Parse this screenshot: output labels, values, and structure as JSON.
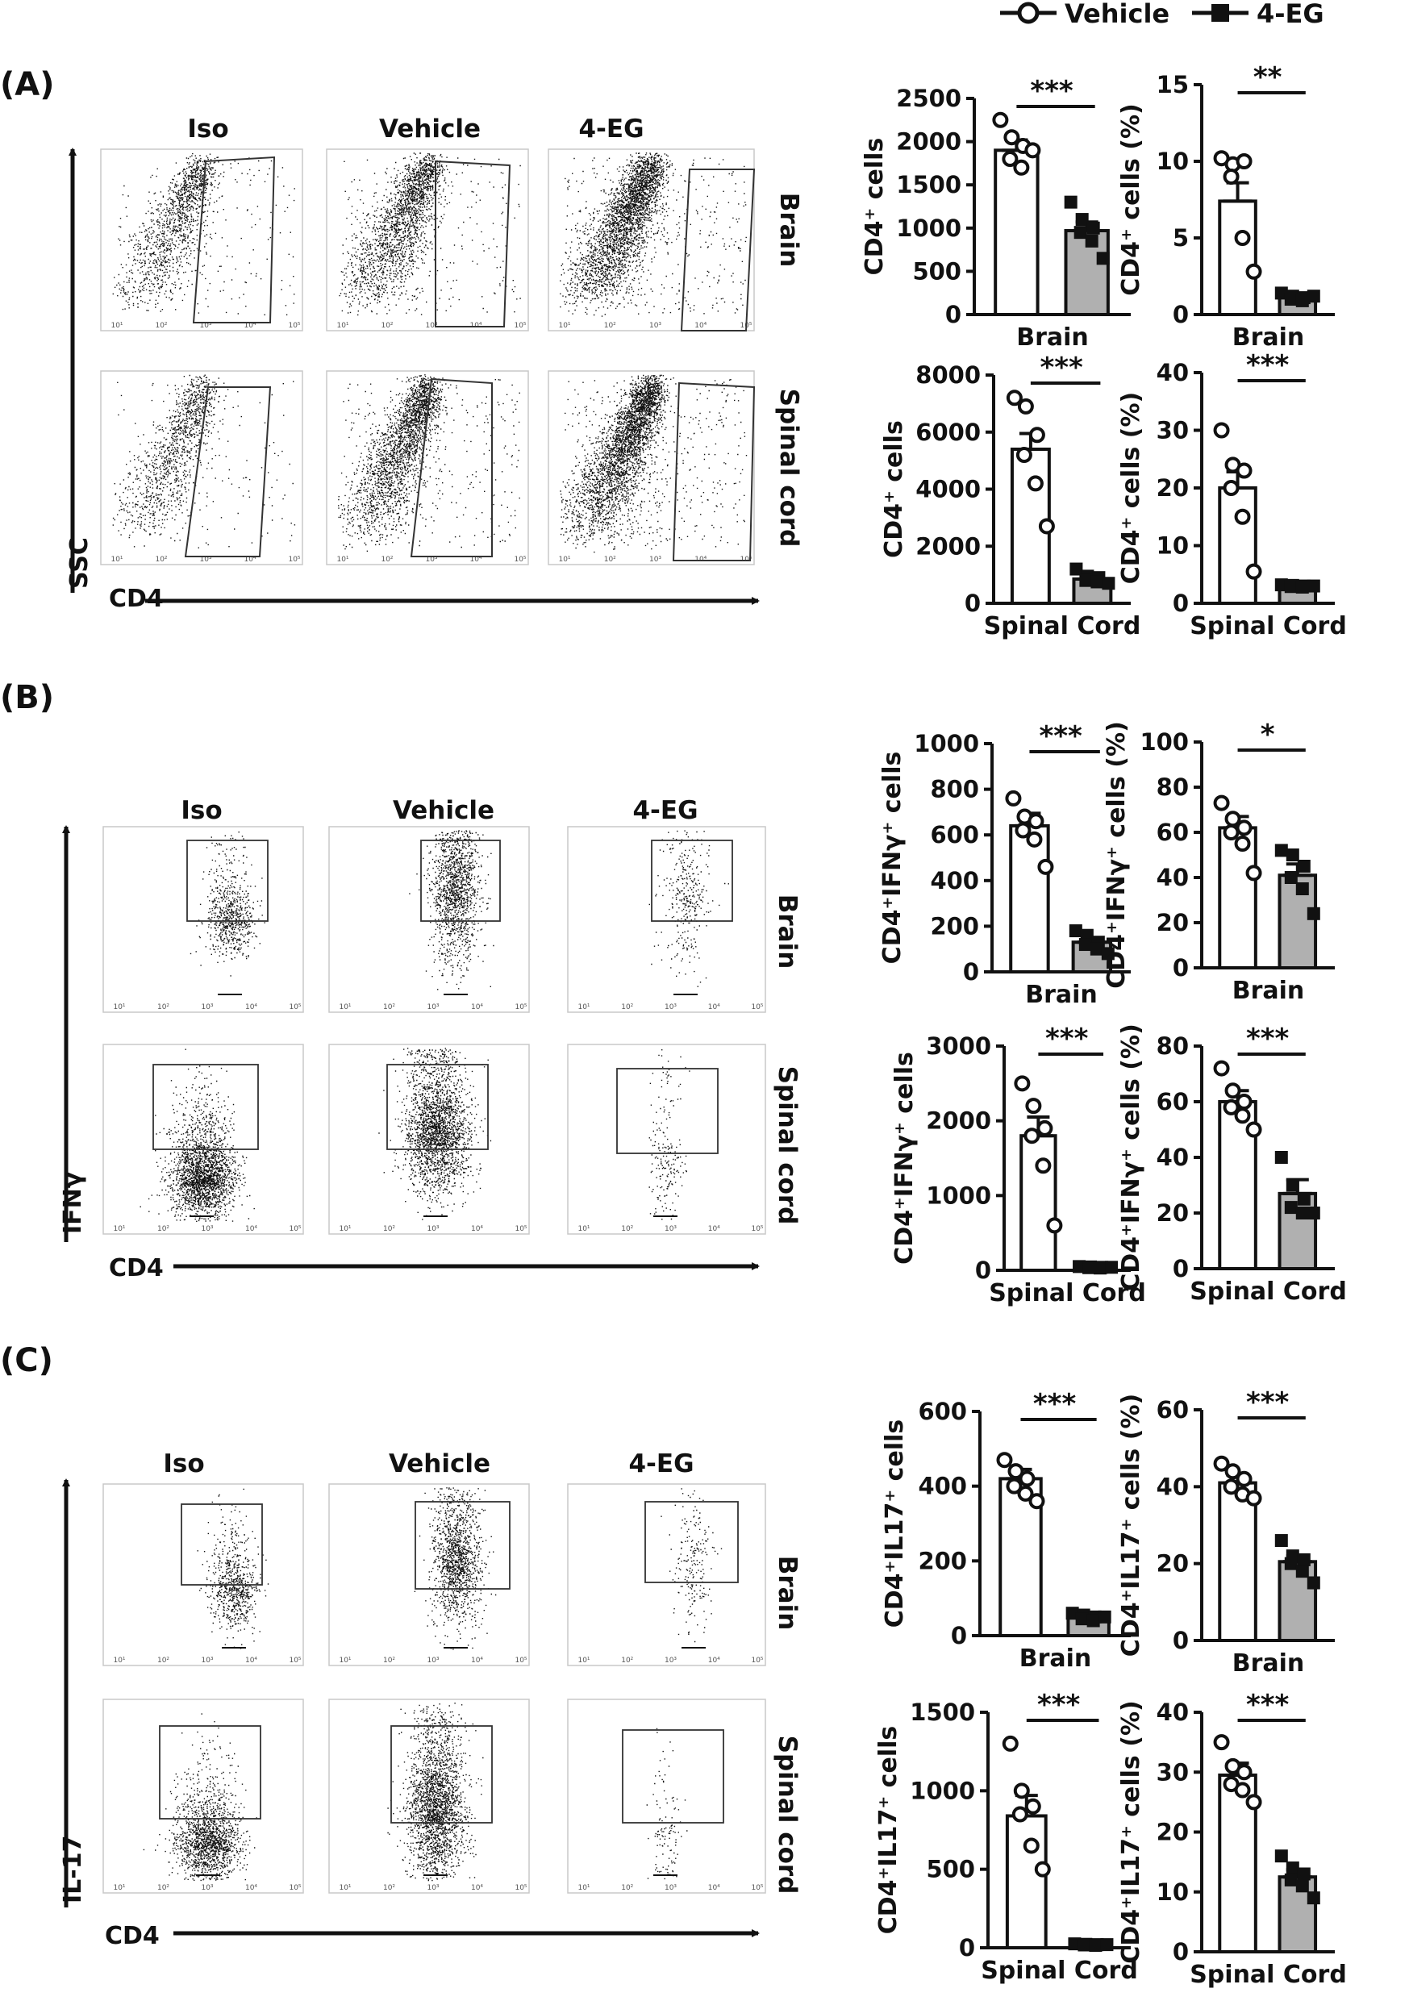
{
  "legend": {
    "vehicle_label": "Vehicle",
    "eg_label": "4-EG"
  },
  "colors": {
    "vehicle_fill": "#ffffff",
    "eg_fill": "#b0b0b0",
    "ink": "#111111"
  },
  "panels": [
    {
      "id": "A",
      "label": "(A)",
      "y_axis_name": "SSC",
      "x_axis_name": "CD4",
      "columns": [
        "Iso",
        "Vehicle",
        "4-EG"
      ],
      "rows": [
        "Brain",
        "Spinal cord"
      ]
    },
    {
      "id": "B",
      "label": "(B)",
      "y_axis_name": "IFNγ",
      "x_axis_name": "CD4",
      "columns": [
        "Iso",
        "Vehicle",
        "4-EG"
      ],
      "rows": [
        "Brain",
        "Spinal cord"
      ]
    },
    {
      "id": "C",
      "label": "(C)",
      "y_axis_name": "IL-17",
      "x_axis_name": "CD4",
      "columns": [
        "Iso",
        "Vehicle",
        "4-EG"
      ],
      "rows": [
        "Brain",
        "Spinal cord"
      ]
    }
  ],
  "flow_tick_labels": [
    "10¹",
    "10²",
    "10³",
    "10⁴",
    "10⁵"
  ],
  "chart_data": [
    {
      "type": "bar",
      "panel": "A",
      "position": "top-left",
      "ylabel": "CD4⁺ cells",
      "xlabel": "Brain",
      "ylim": [
        0,
        2500
      ],
      "yticks": [
        "0",
        "500",
        "1000",
        "1500",
        "2000",
        "2500"
      ],
      "categories": [
        "Vehicle",
        "4-EG"
      ],
      "values": [
        1900,
        970
      ],
      "errors": [
        120,
        100
      ],
      "points": [
        [
          2250,
          2050,
          1950,
          1800,
          1700,
          1900
        ],
        [
          1300,
          1100,
          1000,
          950,
          850,
          650
        ]
      ],
      "significance": "***"
    },
    {
      "type": "bar",
      "panel": "A",
      "position": "top-right",
      "ylabel": "CD4⁺ cells (%)",
      "xlabel": "Brain",
      "ylim": [
        0,
        15
      ],
      "yticks": [
        "0",
        "5",
        "10",
        "15"
      ],
      "categories": [
        "Vehicle",
        "4-EG"
      ],
      "values": [
        7.4,
        1.2
      ],
      "errors": [
        1.2,
        0.2
      ],
      "points": [
        [
          10.2,
          9.8,
          10.0,
          9.0,
          5.0,
          2.8
        ],
        [
          1.4,
          1.2,
          1.1,
          1.0,
          0.9,
          1.2
        ]
      ],
      "significance": "**"
    },
    {
      "type": "bar",
      "panel": "A",
      "position": "bottom-left",
      "ylabel": "CD4⁺ cells",
      "xlabel": "Spinal Cord",
      "ylim": [
        0,
        8000
      ],
      "yticks": [
        "0",
        "2000",
        "4000",
        "6000",
        "8000"
      ],
      "categories": [
        "Vehicle",
        "4-EG"
      ],
      "values": [
        5400,
        850
      ],
      "errors": [
        550,
        100
      ],
      "points": [
        [
          7200,
          6900,
          5900,
          5200,
          4200,
          2700
        ],
        [
          1200,
          950,
          900,
          800,
          750,
          700
        ]
      ],
      "significance": "***"
    },
    {
      "type": "bar",
      "panel": "A",
      "position": "bottom-right",
      "ylabel": "CD4⁺ cells (%)",
      "xlabel": "Spinal Cord",
      "ylim": [
        0,
        40
      ],
      "yticks": [
        "0",
        "10",
        "20",
        "30",
        "40"
      ],
      "categories": [
        "Vehicle",
        "4-EG"
      ],
      "values": [
        20.0,
        3.0
      ],
      "errors": [
        2.8,
        0.2
      ],
      "points": [
        [
          30.0,
          24.0,
          23.0,
          20.0,
          15.0,
          5.5
        ],
        [
          3.2,
          3.1,
          3.0,
          2.9,
          2.8,
          3.0
        ]
      ],
      "significance": "***"
    },
    {
      "type": "bar",
      "panel": "B",
      "position": "top-left",
      "ylabel": "CD4⁺IFNγ⁺ cells",
      "xlabel": "Brain",
      "ylim": [
        0,
        1000
      ],
      "yticks": [
        "0",
        "200",
        "400",
        "600",
        "800",
        "1000"
      ],
      "categories": [
        "Vehicle",
        "4-EG"
      ],
      "values": [
        640,
        130
      ],
      "errors": [
        55,
        20
      ],
      "points": [
        [
          760,
          680,
          660,
          620,
          580,
          460
        ],
        [
          180,
          160,
          130,
          120,
          100,
          80
        ]
      ],
      "significance": "***"
    },
    {
      "type": "bar",
      "panel": "B",
      "position": "top-right",
      "ylabel": "CD4⁺IFNγ⁺ cells (%)",
      "xlabel": "Brain",
      "ylim": [
        0,
        100
      ],
      "yticks": [
        "0",
        "20",
        "40",
        "60",
        "80",
        "100"
      ],
      "categories": [
        "Vehicle",
        "4-EG"
      ],
      "values": [
        62,
        41
      ],
      "errors": [
        5,
        5
      ],
      "points": [
        [
          73,
          66,
          62,
          60,
          55,
          42
        ],
        [
          52,
          50,
          45,
          40,
          35,
          24
        ]
      ],
      "significance": "*"
    },
    {
      "type": "bar",
      "panel": "B",
      "position": "bottom-left",
      "ylabel": "CD4⁺IFNγ⁺ cells",
      "xlabel": "Spinal Cord",
      "ylim": [
        0,
        3000
      ],
      "yticks": [
        "0",
        "1000",
        "2000",
        "3000"
      ],
      "categories": [
        "Vehicle",
        "4-EG"
      ],
      "values": [
        1800,
        40
      ],
      "errors": [
        250,
        10
      ],
      "points": [
        [
          2500,
          2200,
          1900,
          1800,
          1400,
          600
        ],
        [
          50,
          45,
          40,
          35,
          30,
          40
        ]
      ],
      "significance": "***"
    },
    {
      "type": "bar",
      "panel": "B",
      "position": "bottom-right",
      "ylabel": "CD4⁺IFNγ⁺ cells (%)",
      "xlabel": "Spinal Cord",
      "ylim": [
        0,
        80
      ],
      "yticks": [
        "0",
        "20",
        "40",
        "60",
        "80"
      ],
      "categories": [
        "Vehicle",
        "4-EG"
      ],
      "values": [
        60,
        27
      ],
      "errors": [
        4,
        5
      ],
      "points": [
        [
          72,
          64,
          60,
          58,
          55,
          50
        ],
        [
          40,
          30,
          25,
          22,
          20,
          20
        ]
      ],
      "significance": "***"
    },
    {
      "type": "bar",
      "panel": "C",
      "position": "top-left",
      "ylabel": "CD4⁺IL17⁺ cells",
      "xlabel": "Brain",
      "ylim": [
        0,
        600
      ],
      "yticks": [
        "0",
        "200",
        "400",
        "600"
      ],
      "categories": [
        "Vehicle",
        "4-EG"
      ],
      "values": [
        420,
        50
      ],
      "errors": [
        25,
        8
      ],
      "points": [
        [
          470,
          440,
          420,
          400,
          380,
          360
        ],
        [
          60,
          55,
          50,
          45,
          40,
          50
        ]
      ],
      "significance": "***"
    },
    {
      "type": "bar",
      "panel": "C",
      "position": "top-right",
      "ylabel": "CD4⁺IL17⁺ cells (%)",
      "xlabel": "Brain",
      "ylim": [
        0,
        60
      ],
      "yticks": [
        "0",
        "20",
        "40",
        "60"
      ],
      "categories": [
        "Vehicle",
        "4-EG"
      ],
      "values": [
        41,
        20.5
      ],
      "errors": [
        2,
        1.5
      ],
      "points": [
        [
          46,
          44,
          42,
          40,
          38,
          37
        ],
        [
          26,
          22,
          21,
          20,
          18,
          15
        ]
      ],
      "significance": "***"
    },
    {
      "type": "bar",
      "panel": "C",
      "position": "bottom-left",
      "ylabel": "CD4⁺IL17⁺ cells",
      "xlabel": "Spinal Cord",
      "ylim": [
        0,
        1500
      ],
      "yticks": [
        "0",
        "500",
        "1000",
        "1500"
      ],
      "categories": [
        "Vehicle",
        "4-EG"
      ],
      "values": [
        840,
        20
      ],
      "errors": [
        130,
        5
      ],
      "points": [
        [
          1300,
          1000,
          900,
          850,
          650,
          500
        ],
        [
          25,
          22,
          20,
          18,
          15,
          20
        ]
      ],
      "significance": "***"
    },
    {
      "type": "bar",
      "panel": "C",
      "position": "bottom-right",
      "ylabel": "CD4⁺IL17⁺ cells (%)",
      "xlabel": "Spinal Cord",
      "ylim": [
        0,
        40
      ],
      "yticks": [
        "0",
        "10",
        "20",
        "30",
        "40"
      ],
      "categories": [
        "Vehicle",
        "4-EG"
      ],
      "values": [
        29.5,
        12.5
      ],
      "errors": [
        2,
        1.2
      ],
      "points": [
        [
          35,
          31,
          30,
          28,
          27,
          25
        ],
        [
          16,
          14,
          13,
          12,
          11,
          9
        ]
      ],
      "significance": "***"
    }
  ]
}
